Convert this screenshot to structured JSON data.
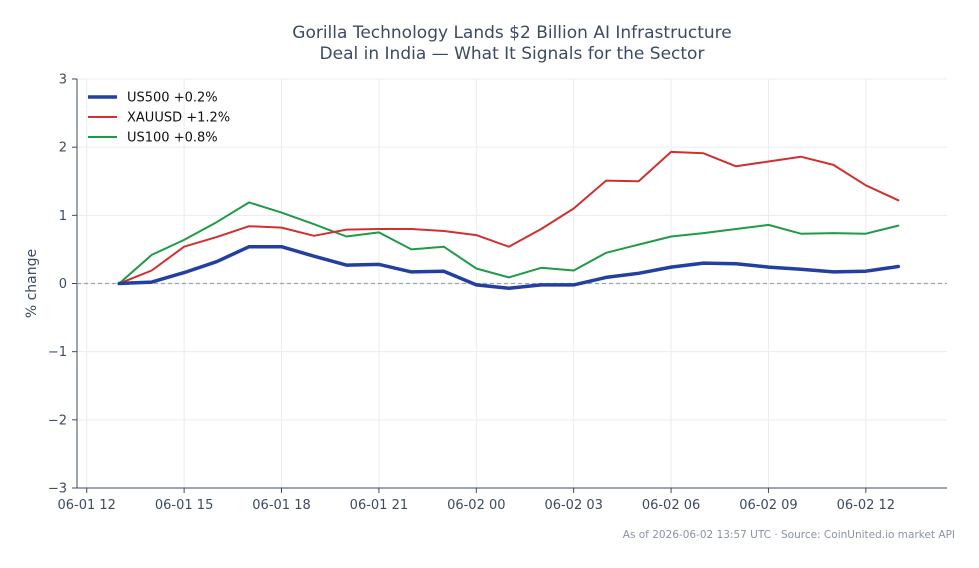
{
  "chart_data": {
    "type": "line",
    "title_lines": [
      "Gorilla Technology Lands $2 Billion AI Infrastructure",
      "Deal in India — What It Signals for the Sector"
    ],
    "ylabel": "% change",
    "ylim": [
      -3,
      3
    ],
    "yticks": [
      {
        "value": 3,
        "label": "3"
      },
      {
        "value": 2,
        "label": "2"
      },
      {
        "value": 1,
        "label": "1"
      },
      {
        "value": 0,
        "label": "0"
      },
      {
        "value": -1,
        "label": "−1"
      },
      {
        "value": -2,
        "label": "−2"
      },
      {
        "value": -3,
        "label": "−3"
      }
    ],
    "xlim_hours": [
      -0.3,
      26.5
    ],
    "xticks": [
      {
        "hours": 0,
        "label": "06-01 12"
      },
      {
        "hours": 3,
        "label": "06-01 15"
      },
      {
        "hours": 6,
        "label": "06-01 18"
      },
      {
        "hours": 9,
        "label": "06-01 21"
      },
      {
        "hours": 12,
        "label": "06-02 00"
      },
      {
        "hours": 15,
        "label": "06-02 03"
      },
      {
        "hours": 18,
        "label": "06-02 06"
      },
      {
        "hours": 21,
        "label": "06-02 09"
      },
      {
        "hours": 24,
        "label": "06-02 12"
      }
    ],
    "x_hours": [
      1,
      2,
      3,
      4,
      5,
      6,
      7,
      8,
      9,
      10,
      11,
      12,
      13,
      14,
      15,
      16,
      17,
      18,
      19,
      20,
      21,
      22,
      23,
      24,
      25
    ],
    "series": [
      {
        "name": "US500 +0.2%",
        "color": "#2340a0",
        "width": 3.5,
        "values": [
          0.0,
          0.02,
          0.16,
          0.32,
          0.54,
          0.54,
          0.4,
          0.27,
          0.28,
          0.17,
          0.18,
          -0.02,
          -0.07,
          -0.02,
          -0.02,
          0.09,
          0.15,
          0.24,
          0.3,
          0.29,
          0.24,
          0.21,
          0.17,
          0.18,
          0.25
        ]
      },
      {
        "name": "XAUUSD +1.2%",
        "color": "#d03030",
        "width": 2,
        "values": [
          0.0,
          0.19,
          0.54,
          0.68,
          0.84,
          0.82,
          0.7,
          0.79,
          0.8,
          0.8,
          0.77,
          0.71,
          0.54,
          0.8,
          1.1,
          1.51,
          1.5,
          1.93,
          1.91,
          1.72,
          1.79,
          1.86,
          1.74,
          1.44,
          1.22
        ]
      },
      {
        "name": "US100 +0.8%",
        "color": "#1f9a48",
        "width": 2,
        "values": [
          0.0,
          0.42,
          0.64,
          0.9,
          1.19,
          1.04,
          0.87,
          0.69,
          0.75,
          0.5,
          0.54,
          0.22,
          0.09,
          0.23,
          0.19,
          0.45,
          0.57,
          0.69,
          0.74,
          0.8,
          0.86,
          0.73,
          0.74,
          0.73,
          0.85
        ]
      }
    ],
    "zero_line": true,
    "grid": true,
    "legend_position": "top-left",
    "footnote": "As of 2026-06-02 13:57 UTC · Source: CoinUnited.io market API"
  }
}
